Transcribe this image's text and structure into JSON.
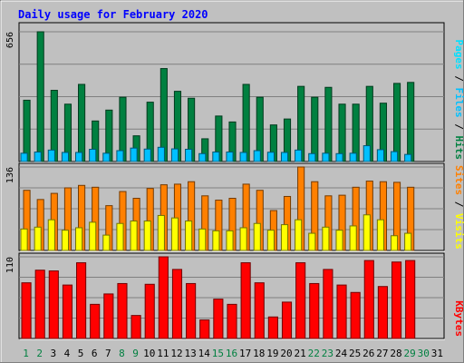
{
  "chart_data": {
    "type": "bar",
    "title": "Daily usage for February 2020",
    "categories": [
      "1",
      "2",
      "3",
      "4",
      "5",
      "6",
      "7",
      "8",
      "9",
      "10",
      "11",
      "12",
      "13",
      "14",
      "15",
      "16",
      "17",
      "18",
      "19",
      "20",
      "21",
      "22",
      "23",
      "24",
      "25",
      "26",
      "27",
      "28",
      "29",
      "30",
      "31"
    ],
    "weekend_days": [
      "1",
      "2",
      "8",
      "9",
      "15",
      "16",
      "22",
      "23",
      "29",
      "30"
    ],
    "colors": {
      "background": "#c0c0c0",
      "title": "#0000ff",
      "hits": "#008040",
      "files": "#00c0ff",
      "pages": "#00e0ff",
      "visits": "#ffff00",
      "sites": "#ff8000",
      "kbytes": "#ff0000",
      "weekday_label": "#000000",
      "weekend_label": "#008040"
    },
    "panels": [
      {
        "max_label": "656",
        "ylim": [
          0,
          656
        ],
        "legend": [
          "Pages",
          "Files",
          "Hits"
        ],
        "series": [
          {
            "name": "Hits",
            "values": [
              310,
              656,
              360,
              290,
              390,
              205,
              260,
              325,
              130,
              300,
              470,
              355,
              320,
              115,
              230,
              200,
              390,
              325,
              185,
              215,
              380,
              325,
              375,
              290,
              290,
              380,
              295,
              395,
              400,
              0,
              0
            ]
          },
          {
            "name": "Files",
            "values": [
              42,
              48,
              58,
              46,
              46,
              62,
              42,
              55,
              68,
              63,
              72,
              64,
              62,
              40,
              48,
              48,
              46,
              55,
              47,
              46,
              58,
              40,
              42,
              40,
              42,
              80,
              60,
              50,
              36,
              0,
              0
            ]
          }
        ]
      },
      {
        "max_label": "136",
        "ylim": [
          0,
          136
        ],
        "legend": [
          "Sites",
          "Visits"
        ],
        "series": [
          {
            "name": "Sites",
            "values": [
              98,
              83,
              93,
              102,
              106,
              103,
              73,
              96,
              85,
              101,
              107,
              108,
              112,
              89,
              82,
              85,
              108,
              98,
              65,
              88,
              136,
              112,
              89,
              90,
              103,
              113,
              112,
              111,
              103,
              0,
              0
            ]
          },
          {
            "name": "Visits",
            "values": [
              35,
              38,
              50,
              33,
              37,
              46,
              25,
              44,
              48,
              48,
              57,
              53,
              48,
              35,
              32,
              32,
              37,
              44,
              33,
              42,
              50,
              28,
              38,
              33,
              40,
              58,
              50,
              24,
              28,
              0,
              0
            ]
          }
        ]
      },
      {
        "max_label": "110",
        "ylim": [
          0,
          110
        ],
        "legend": [
          "KBytes"
        ],
        "series": [
          {
            "name": "KBytes",
            "values": [
              75,
              92,
              91,
              72,
              102,
              46,
              60,
              74,
              31,
              73,
              110,
              93,
              74,
              25,
              53,
              46,
              102,
              75,
              29,
              49,
              102,
              74,
              93,
              72,
              62,
              105,
              70,
              103,
              105,
              0,
              0
            ]
          }
        ]
      }
    ]
  }
}
